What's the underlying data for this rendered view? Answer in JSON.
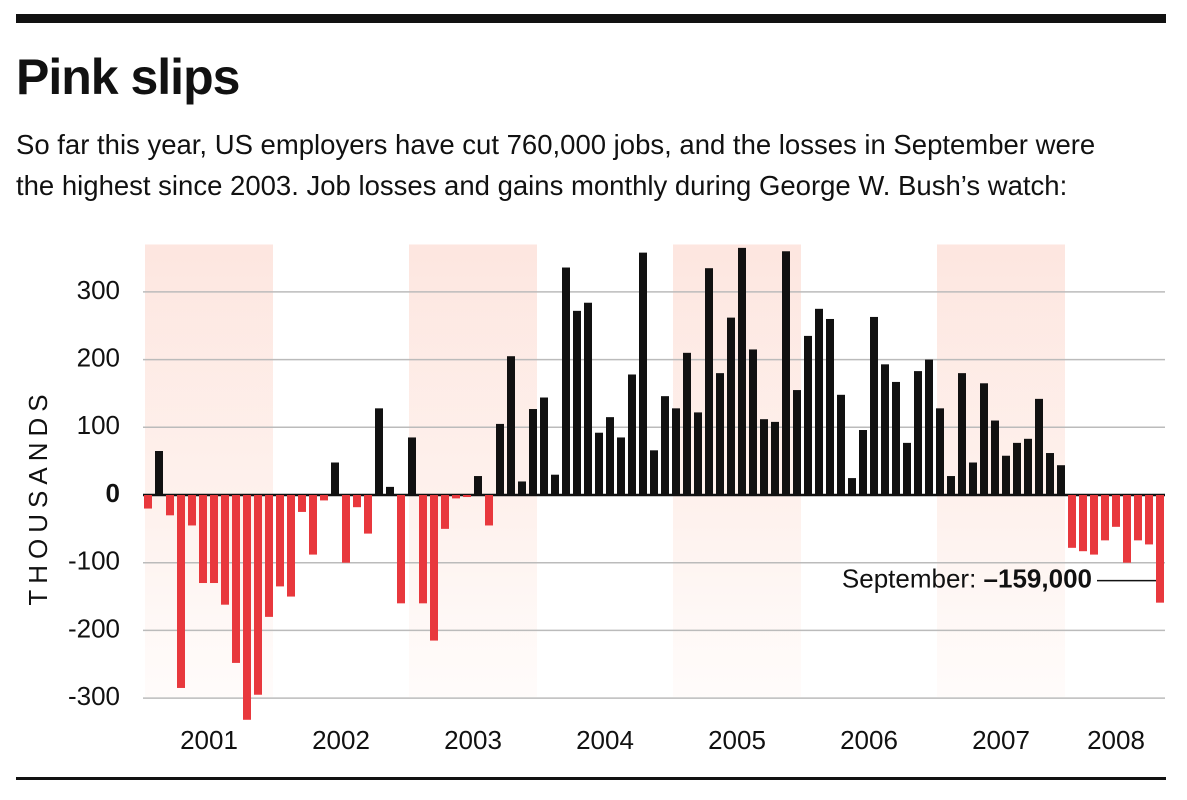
{
  "chart_data": {
    "type": "bar",
    "title": "Pink slips",
    "subtitle": "So far this year, US employers have cut 760,000 jobs, and the losses in September were the highest since 2003. Job losses and gains monthly during George W. Bush’s watch:",
    "y_axis_label": "THOUSANDS",
    "year_labels": [
      "2001",
      "2002",
      "2003",
      "2004",
      "2005",
      "2006",
      "2007",
      "2008"
    ],
    "categories": [
      null,
      null,
      null,
      null,
      null,
      null,
      null,
      null,
      null,
      null,
      null,
      null,
      null,
      null,
      null,
      null,
      null,
      null,
      null,
      null,
      null,
      null,
      null,
      null,
      null,
      null,
      null,
      null,
      null,
      null,
      null,
      null,
      null,
      null,
      null,
      null,
      null,
      null,
      null,
      null,
      null,
      null,
      null,
      null,
      null,
      null,
      null,
      null,
      null,
      null,
      null,
      null,
      null,
      null,
      null,
      null,
      null,
      null,
      null,
      null,
      null,
      null,
      null,
      null,
      null,
      null,
      null,
      null,
      null,
      null,
      null,
      null,
      null,
      null,
      null,
      null,
      null,
      null,
      null,
      null,
      null,
      null,
      null,
      null,
      null,
      null,
      null,
      null,
      null,
      null,
      null,
      null,
      null
    ],
    "values": [
      -20,
      65,
      -30,
      -285,
      -45,
      -130,
      -130,
      -162,
      -248,
      -332,
      -295,
      -180,
      -135,
      -150,
      -25,
      -88,
      -8,
      48,
      -100,
      -18,
      -57,
      128,
      12,
      -160,
      85,
      -160,
      -215,
      -50,
      -5,
      -3,
      28,
      -45,
      105,
      205,
      20,
      127,
      144,
      30,
      336,
      272,
      284,
      92,
      115,
      85,
      178,
      358,
      66,
      146,
      128,
      210,
      122,
      335,
      180,
      262,
      365,
      215,
      112,
      108,
      360,
      155,
      235,
      275,
      260,
      148,
      25,
      96,
      263,
      193,
      167,
      77,
      183,
      200,
      128,
      28,
      180,
      48,
      165,
      110,
      58,
      77,
      83,
      142,
      62,
      44,
      -78,
      -83,
      -88,
      -67,
      -47,
      -100,
      -67,
      -73,
      -159
    ],
    "value_labels": [
      null,
      null,
      null,
      null,
      null,
      null,
      null,
      null,
      null,
      null,
      null,
      null,
      null,
      null,
      null,
      null,
      null,
      null,
      null,
      null,
      null,
      null,
      null,
      null,
      null,
      null,
      null,
      null,
      null,
      null,
      null,
      null,
      null,
      null,
      null,
      null,
      null,
      null,
      null,
      null,
      null,
      null,
      null,
      null,
      null,
      null,
      null,
      null,
      null,
      null,
      null,
      null,
      null,
      null,
      null,
      null,
      null,
      null,
      null,
      null,
      null,
      null,
      null,
      null,
      null,
      null,
      null,
      null,
      null,
      null,
      null,
      null,
      null,
      null,
      null,
      null,
      null,
      null,
      null,
      null,
      null,
      null,
      null,
      null,
      null,
      null,
      null,
      null,
      null,
      null,
      null,
      null,
      "–159,000"
    ],
    "annotation": "September:",
    "positive_color": "#111111",
    "negative_color": "#e8383d",
    "ylim": [
      -340,
      370
    ],
    "yticks": [
      -300,
      -200,
      -100,
      0,
      100,
      200,
      300
    ],
    "grid": true
  }
}
